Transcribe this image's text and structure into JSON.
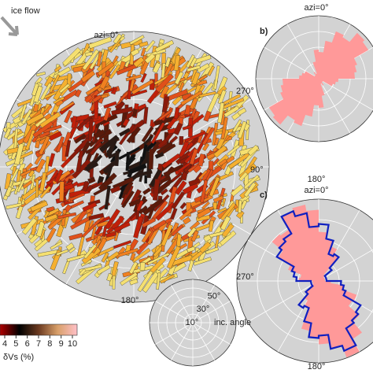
{
  "panel_a": {
    "annotation": "ice flow",
    "north": "azi=0°",
    "east": "90°",
    "south": "180°",
    "colorbar": {
      "ticks": [
        4,
        5,
        6,
        7,
        8,
        9,
        10
      ],
      "label": "δVs (%)"
    },
    "inset": {
      "rings": [
        "50°",
        "30°",
        "10°"
      ],
      "label": "inc. angle"
    }
  },
  "panel_b": {
    "label": "b)",
    "north": "azi=0°",
    "west": "270°",
    "south": "180°"
  },
  "panel_c": {
    "label": "c)",
    "north": "azi=0°",
    "west": "270°",
    "south": "180°"
  }
}
